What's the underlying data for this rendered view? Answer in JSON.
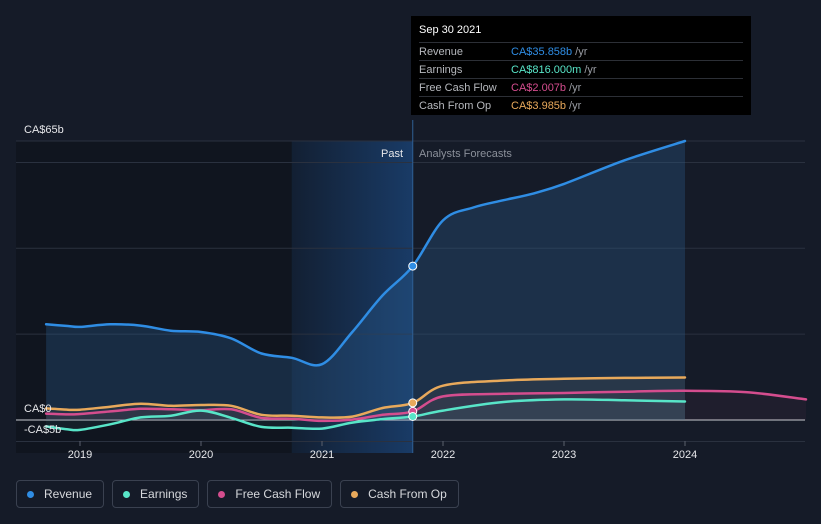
{
  "chart_data": {
    "type": "line",
    "y_axis_labels": {
      "top": "CA$65b",
      "zero": "CA$0",
      "bottom": "-CA$5b"
    },
    "ylim": [
      -5,
      65
    ],
    "xlim": [
      2018.72,
      2025.0
    ],
    "x_ticks": [
      {
        "value": 2019.0,
        "label": "2019"
      },
      {
        "value": 2020.0,
        "label": "2020"
      },
      {
        "value": 2021.0,
        "label": "2021"
      },
      {
        "value": 2022.0,
        "label": "2022"
      },
      {
        "value": 2023.0,
        "label": "2023"
      },
      {
        "value": 2024.0,
        "label": "2024"
      }
    ],
    "divider_x": 2021.75,
    "regions": {
      "past_label": "Past",
      "forecast_label": "Analysts Forecasts"
    },
    "highlight_band": [
      2020.75,
      2021.75
    ],
    "series": [
      {
        "name": "Revenue",
        "color": "#2f8de4",
        "fill": true,
        "points": [
          [
            2018.72,
            22.3
          ],
          [
            2018.9,
            21.9
          ],
          [
            2019.0,
            21.7
          ],
          [
            2019.25,
            22.3
          ],
          [
            2019.5,
            22.0
          ],
          [
            2019.75,
            20.8
          ],
          [
            2020.0,
            20.5
          ],
          [
            2020.25,
            19.0
          ],
          [
            2020.5,
            15.5
          ],
          [
            2020.75,
            14.5
          ],
          [
            2021.0,
            13.0
          ],
          [
            2021.25,
            20.5
          ],
          [
            2021.5,
            29.0
          ],
          [
            2021.75,
            35.858
          ],
          [
            2022.0,
            46.5
          ],
          [
            2022.25,
            49.5
          ],
          [
            2022.5,
            51.2
          ],
          [
            2022.75,
            52.8
          ],
          [
            2023.0,
            55.0
          ],
          [
            2023.5,
            60.5
          ],
          [
            2024.0,
            65.0
          ]
        ]
      },
      {
        "name": "Earnings",
        "color": "#58e5c8",
        "points": [
          [
            2018.72,
            -1.5
          ],
          [
            2018.9,
            -2.2
          ],
          [
            2019.0,
            -2.3
          ],
          [
            2019.25,
            -1.0
          ],
          [
            2019.5,
            0.6
          ],
          [
            2019.75,
            1.0
          ],
          [
            2020.0,
            2.2
          ],
          [
            2020.25,
            0.5
          ],
          [
            2020.5,
            -1.6
          ],
          [
            2020.75,
            -1.8
          ],
          [
            2021.0,
            -2.0
          ],
          [
            2021.25,
            -0.6
          ],
          [
            2021.5,
            0.2
          ],
          [
            2021.75,
            0.816
          ],
          [
            2022.0,
            2.2
          ],
          [
            2022.5,
            4.2
          ],
          [
            2023.0,
            4.8
          ],
          [
            2023.5,
            4.6
          ],
          [
            2024.0,
            4.3
          ]
        ]
      },
      {
        "name": "Free Cash Flow",
        "color": "#d44d8e",
        "points": [
          [
            2018.72,
            1.5
          ],
          [
            2018.9,
            1.3
          ],
          [
            2019.0,
            1.4
          ],
          [
            2019.25,
            2.0
          ],
          [
            2019.5,
            2.6
          ],
          [
            2019.75,
            2.5
          ],
          [
            2020.0,
            2.3
          ],
          [
            2020.25,
            2.5
          ],
          [
            2020.5,
            0.5
          ],
          [
            2020.75,
            0.3
          ],
          [
            2021.0,
            -0.2
          ],
          [
            2021.25,
            0.1
          ],
          [
            2021.5,
            1.2
          ],
          [
            2021.75,
            2.007
          ],
          [
            2022.0,
            5.5
          ],
          [
            2022.5,
            6.1
          ],
          [
            2023.0,
            6.3
          ],
          [
            2023.5,
            6.6
          ],
          [
            2024.0,
            6.8
          ],
          [
            2024.5,
            6.5
          ],
          [
            2025.0,
            4.8
          ]
        ]
      },
      {
        "name": "Cash From Op",
        "color": "#e8a95b",
        "points": [
          [
            2018.72,
            2.7
          ],
          [
            2018.9,
            2.4
          ],
          [
            2019.0,
            2.4
          ],
          [
            2019.25,
            3.1
          ],
          [
            2019.5,
            3.8
          ],
          [
            2019.75,
            3.3
          ],
          [
            2020.0,
            3.5
          ],
          [
            2020.25,
            3.3
          ],
          [
            2020.5,
            1.2
          ],
          [
            2020.75,
            1.0
          ],
          [
            2021.0,
            0.6
          ],
          [
            2021.25,
            0.8
          ],
          [
            2021.5,
            2.8
          ],
          [
            2021.75,
            3.985
          ],
          [
            2022.0,
            8.0
          ],
          [
            2022.5,
            9.2
          ],
          [
            2023.0,
            9.6
          ],
          [
            2023.5,
            9.8
          ],
          [
            2024.0,
            9.9
          ]
        ]
      }
    ],
    "legend": [
      {
        "name": "Revenue",
        "color": "#2f8de4"
      },
      {
        "name": "Earnings",
        "color": "#58e5c8"
      },
      {
        "name": "Free Cash Flow",
        "color": "#d44d8e"
      },
      {
        "name": "Cash From Op",
        "color": "#e8a95b"
      }
    ]
  },
  "tooltip": {
    "date": "Sep 30 2021",
    "rows": [
      {
        "label": "Revenue",
        "value": "CA$35.858b",
        "unit": "/yr",
        "color": "#2f8de4"
      },
      {
        "label": "Earnings",
        "value": "CA$816.000m",
        "unit": "/yr",
        "color": "#58e5c8"
      },
      {
        "label": "Free Cash Flow",
        "value": "CA$2.007b",
        "unit": "/yr",
        "color": "#d44d8e"
      },
      {
        "label": "Cash From Op",
        "value": "CA$3.985b",
        "unit": "/yr",
        "color": "#e8a95b"
      }
    ]
  }
}
